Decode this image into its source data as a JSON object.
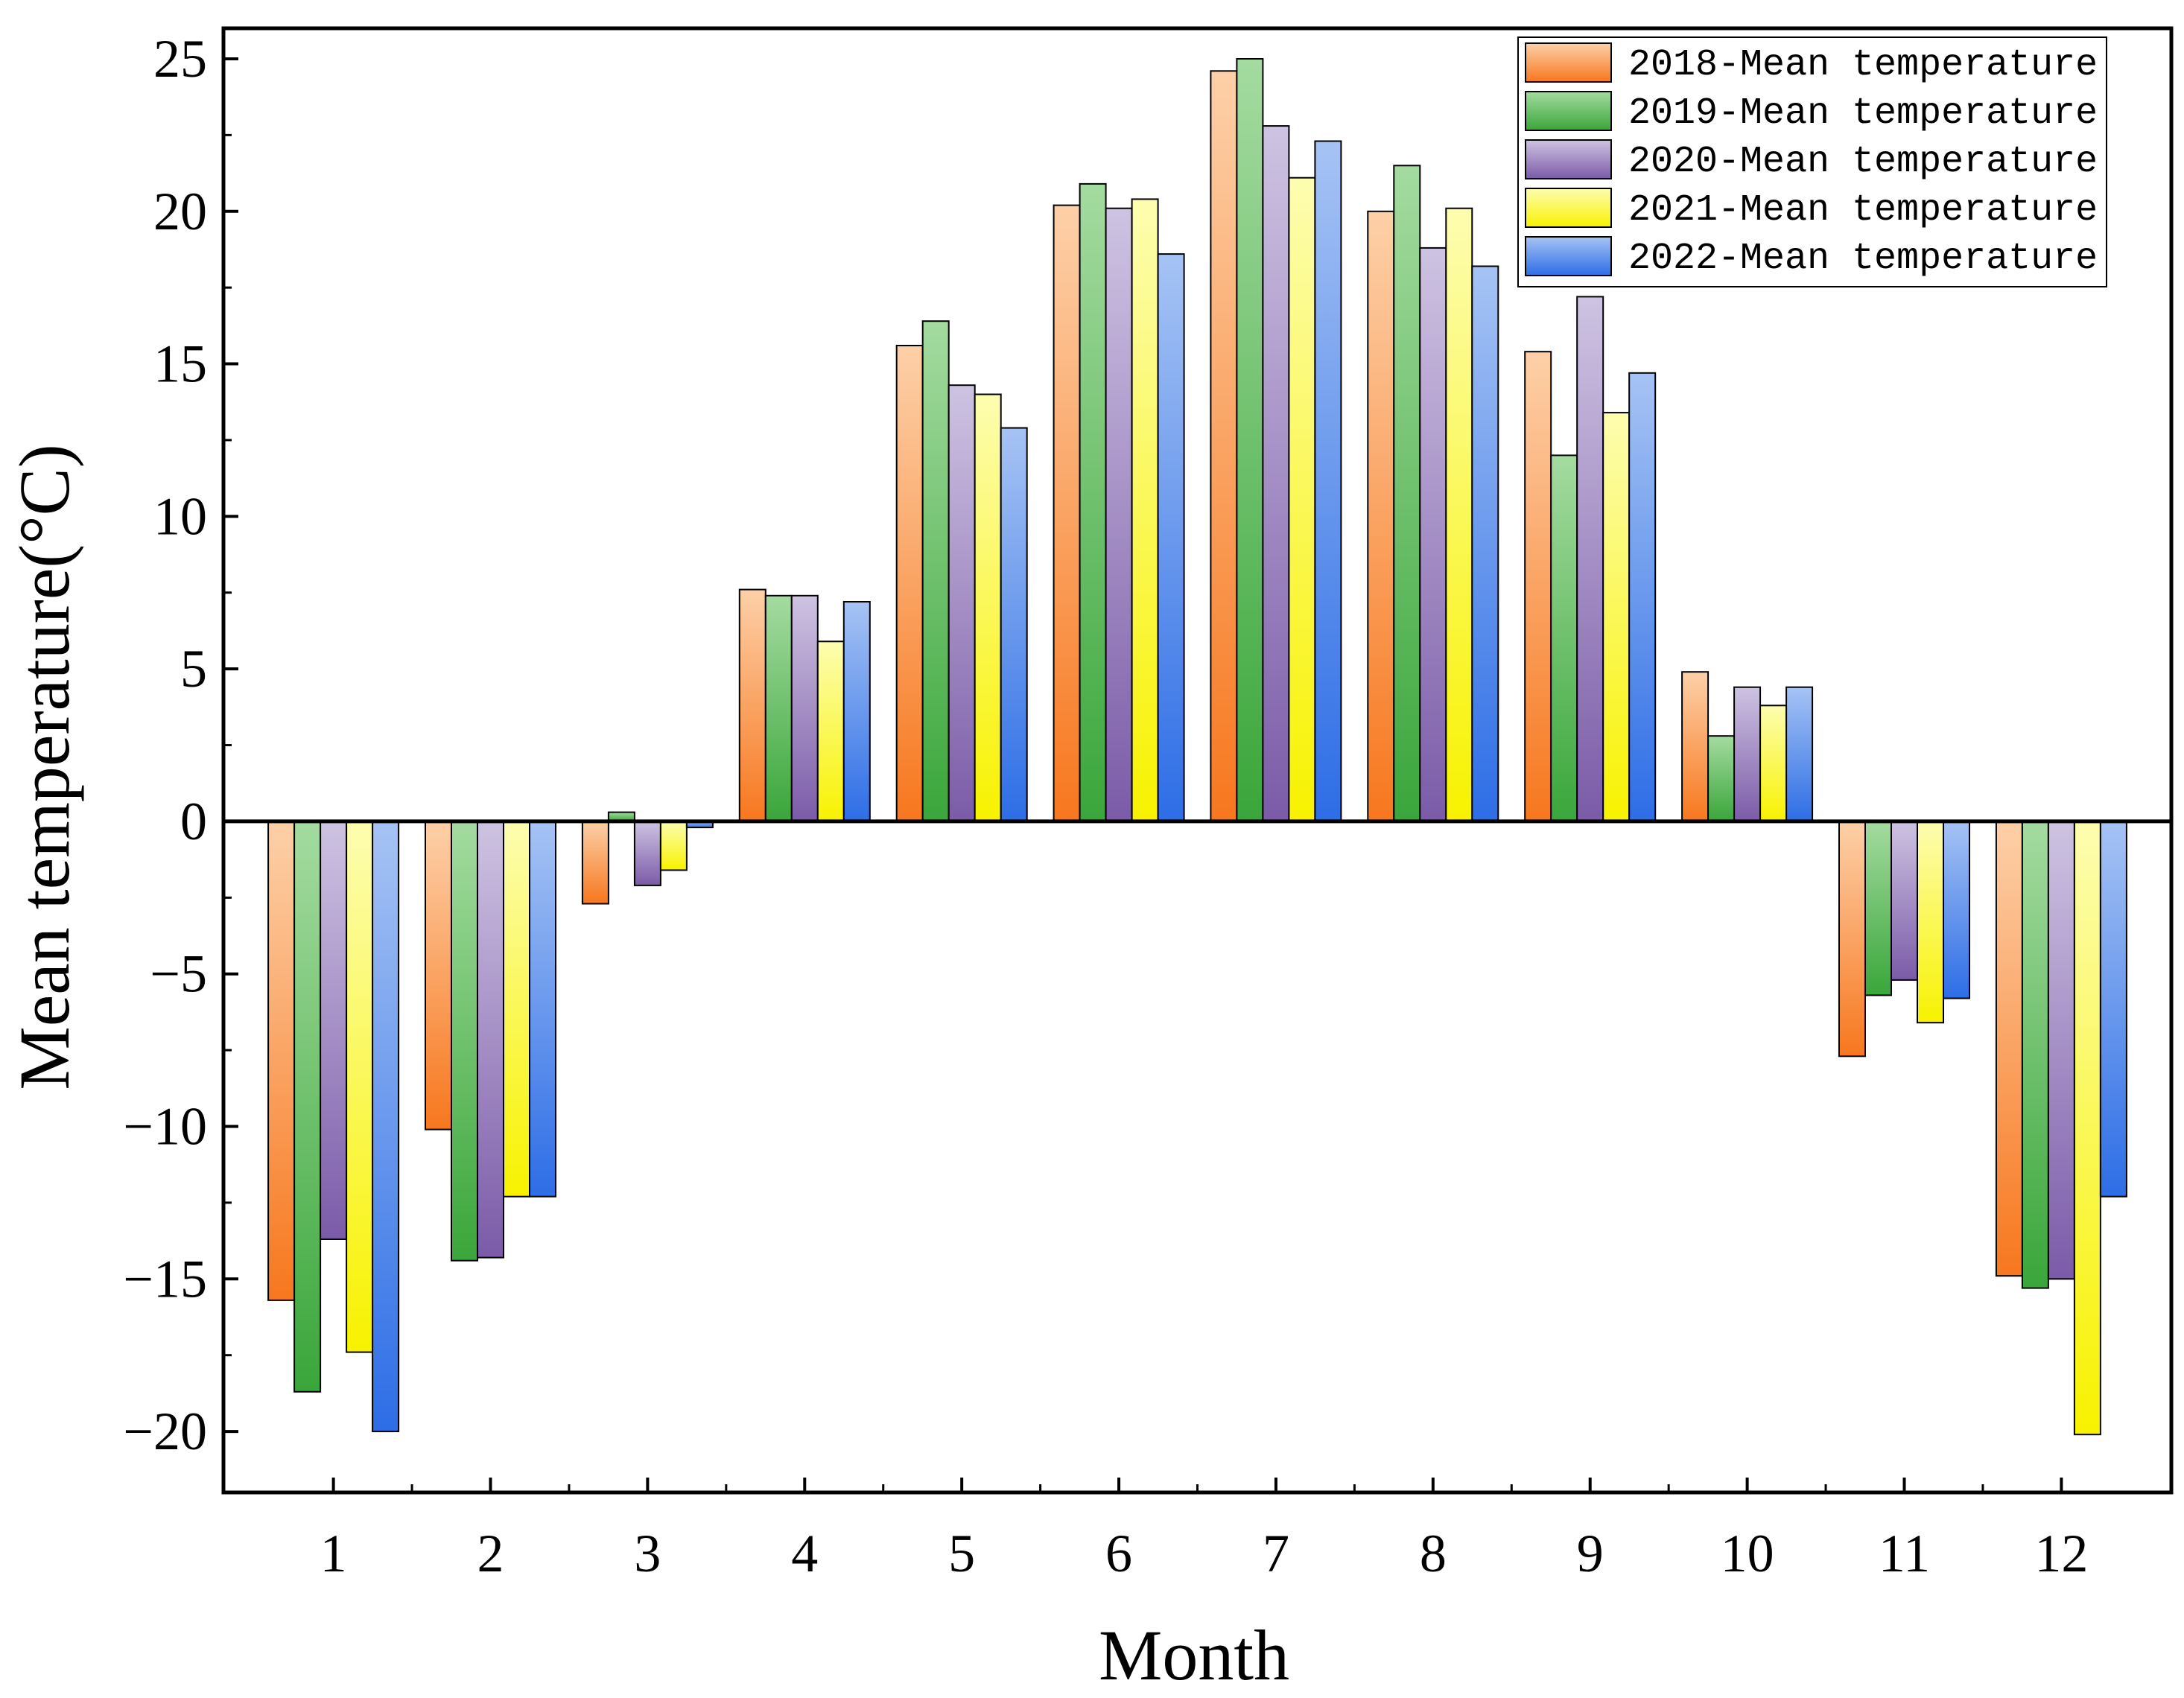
{
  "chart_data": {
    "type": "bar",
    "title": "",
    "xlabel": "Month",
    "ylabel": "Mean temperature(°C)",
    "ylim": [
      -22,
      26
    ],
    "yticks": [
      -20,
      -15,
      -10,
      -5,
      0,
      5,
      10,
      15,
      20,
      25
    ],
    "ytick_labels": [
      "−20",
      "−15",
      "−10",
      "−5",
      "0",
      "5",
      "10",
      "15",
      "20",
      "25"
    ],
    "categories": [
      "1",
      "2",
      "3",
      "4",
      "5",
      "6",
      "7",
      "8",
      "9",
      "10",
      "11",
      "12"
    ],
    "legend_position": "top-right",
    "series": [
      {
        "name": "2018-Mean temperature",
        "color_top": "#fdd0a8",
        "color_bottom": "#f7771e",
        "values": [
          -15.7,
          -10.1,
          -2.7,
          7.6,
          15.6,
          20.2,
          24.6,
          20.0,
          15.4,
          4.9,
          -7.7,
          -14.9
        ]
      },
      {
        "name": "2019-Mean temperature",
        "color_top": "#a4dba0",
        "color_bottom": "#3aa63a",
        "values": [
          -18.7,
          -14.4,
          0.3,
          7.4,
          16.4,
          20.9,
          25.0,
          21.5,
          12.0,
          2.8,
          -5.7,
          -15.3
        ]
      },
      {
        "name": "2020-Mean temperature",
        "color_top": "#cec3e2",
        "color_bottom": "#7b5ba8",
        "values": [
          -13.7,
          -14.3,
          -2.1,
          7.4,
          14.3,
          20.1,
          22.8,
          18.8,
          17.2,
          4.4,
          -5.2,
          -15.0
        ]
      },
      {
        "name": "2021-Mean temperature",
        "color_top": "#fdfdb0",
        "color_bottom": "#f8f200",
        "values": [
          -17.4,
          -12.3,
          -1.6,
          5.9,
          14.0,
          20.4,
          21.1,
          20.1,
          13.4,
          3.8,
          -6.6,
          -20.1
        ]
      },
      {
        "name": "2022-Mean temperature",
        "color_top": "#a6c3f4",
        "color_bottom": "#2d6de6",
        "values": [
          -20.0,
          -12.3,
          -0.2,
          7.2,
          12.9,
          18.6,
          22.3,
          18.2,
          14.7,
          4.4,
          -5.8,
          -12.3
        ]
      }
    ]
  }
}
